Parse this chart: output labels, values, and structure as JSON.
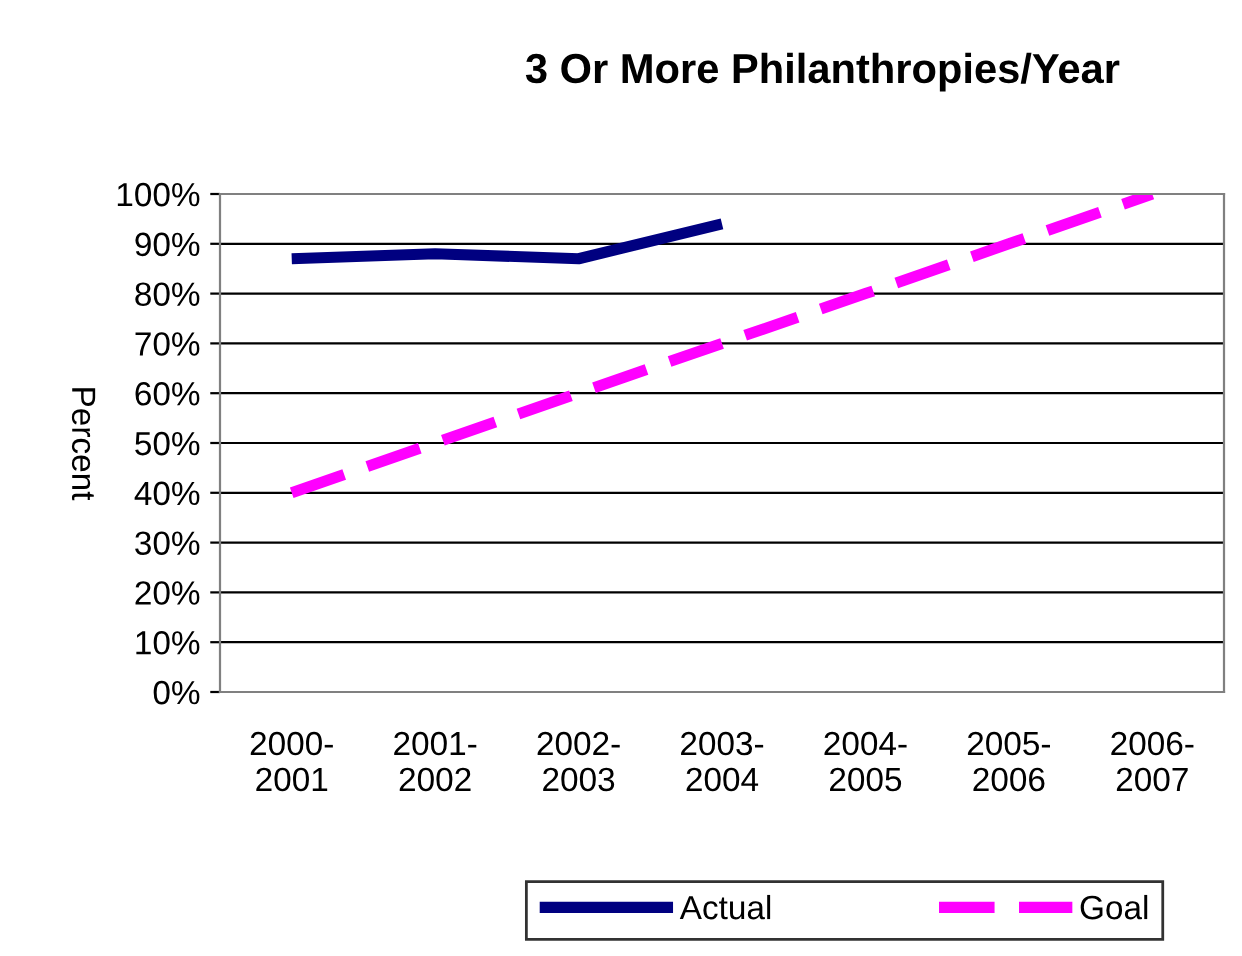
{
  "chart_data": {
    "type": "line",
    "title": "3 Or More Philanthropies/Year",
    "ylabel": "Percent",
    "categories": [
      "2000-\n2001",
      "2001-\n2002",
      "2002-\n2003",
      "2003-\n2004",
      "2004-\n2005",
      "2005-\n2006",
      "2006-\n2007"
    ],
    "series": [
      {
        "name": "Actual",
        "color": "#000080",
        "line_style": "solid",
        "values": [
          87,
          88,
          87,
          94,
          null,
          null,
          null
        ]
      },
      {
        "name": "Goal",
        "color": "#ff00ff",
        "line_style": "dashed",
        "values": [
          40,
          50,
          60,
          70,
          80,
          90,
          100
        ]
      }
    ],
    "ylim": [
      0,
      100
    ],
    "yticks": [
      {
        "value": 0,
        "label": "0%"
      },
      {
        "value": 10,
        "label": "10%"
      },
      {
        "value": 20,
        "label": "20%"
      },
      {
        "value": 30,
        "label": "30%"
      },
      {
        "value": 40,
        "label": "40%"
      },
      {
        "value": 50,
        "label": "50%"
      },
      {
        "value": 60,
        "label": "60%"
      },
      {
        "value": 70,
        "label": "70%"
      },
      {
        "value": 80,
        "label": "80%"
      },
      {
        "value": 90,
        "label": "90%"
      },
      {
        "value": 100,
        "label": "100%"
      }
    ],
    "grid": "y",
    "legend": "bottom",
    "marker": "none"
  }
}
